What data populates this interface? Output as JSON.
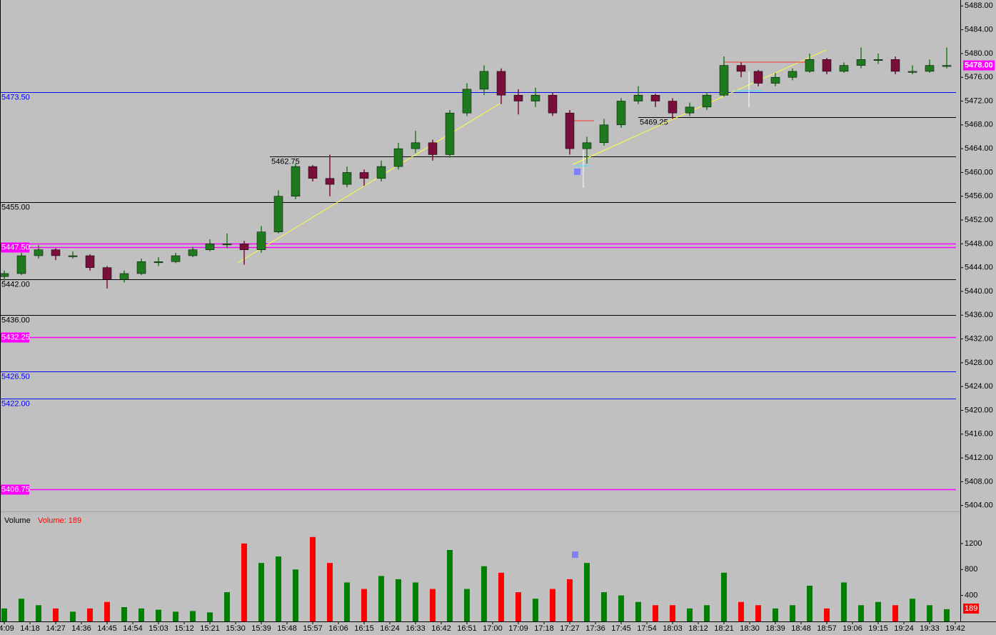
{
  "chart_data": [
    {
      "type": "candlestick",
      "x": [
        "14:09",
        "14:15",
        "14:21",
        "14:27",
        "14:33",
        "14:39",
        "14:45",
        "14:51",
        "14:57",
        "15:03",
        "15:09",
        "15:15",
        "15:21",
        "15:27",
        "15:33",
        "15:39",
        "15:45",
        "15:51",
        "15:57",
        "16:03",
        "16:09",
        "16:15",
        "16:21",
        "16:27",
        "16:33",
        "16:39",
        "16:45",
        "16:51",
        "16:57",
        "17:03",
        "17:09",
        "17:15",
        "17:21",
        "17:27",
        "17:33",
        "17:39",
        "17:45",
        "17:51",
        "17:57",
        "18:03",
        "18:09",
        "18:15",
        "18:21",
        "18:27",
        "18:33",
        "18:39",
        "18:45",
        "18:51",
        "18:57",
        "19:03",
        "19:09",
        "19:15",
        "19:21",
        "19:27",
        "19:33",
        "19:39"
      ],
      "open": [
        5442.5,
        5443,
        5446,
        5447,
        5446,
        5446,
        5444,
        5442,
        5443,
        5445,
        5445,
        5446,
        5447,
        5448,
        5448,
        5447,
        5450,
        5456,
        5461,
        5459,
        5458,
        5460,
        5459,
        5461,
        5464,
        5465,
        5463,
        5470,
        5474,
        5477,
        5473,
        5472,
        5473,
        5470,
        5464,
        5465,
        5468,
        5472,
        5473,
        5472,
        5470,
        5471,
        5473,
        5478,
        5477,
        5475,
        5476,
        5477,
        5479,
        5477,
        5478,
        5479,
        5479,
        5477,
        5477,
        5478
      ],
      "high": [
        5443.5,
        5446.5,
        5447.75,
        5447.25,
        5446.75,
        5446.25,
        5444.25,
        5443.5,
        5445.5,
        5445.75,
        5446.5,
        5447.5,
        5448.75,
        5449.75,
        5448.5,
        5451,
        5457,
        5461.5,
        5461.25,
        5463,
        5461,
        5460.5,
        5462,
        5465,
        5467,
        5465.5,
        5470.5,
        5475,
        5478,
        5477.5,
        5474,
        5474.25,
        5473.5,
        5470.5,
        5466,
        5469,
        5472.5,
        5474.5,
        5473.25,
        5472.5,
        5471.75,
        5473.5,
        5479.5,
        5478.5,
        5477.25,
        5476.75,
        5477.5,
        5480,
        5479.25,
        5478.5,
        5481,
        5480,
        5479.5,
        5478,
        5479,
        5481
      ],
      "low": [
        5441.75,
        5442.75,
        5445.5,
        5445.25,
        5445.5,
        5443.5,
        5440.5,
        5441.5,
        5442.75,
        5444.25,
        5444.75,
        5445.75,
        5446.75,
        5447.25,
        5444.5,
        5446.5,
        5449.75,
        5455.5,
        5458.5,
        5456,
        5457.5,
        5457.75,
        5458.5,
        5460.5,
        5463.25,
        5462,
        5462.5,
        5469.5,
        5473,
        5471.5,
        5469.75,
        5471,
        5469.5,
        5463,
        5461.5,
        5464.5,
        5467.5,
        5471.5,
        5471,
        5469,
        5469.5,
        5470.5,
        5472.75,
        5476,
        5474.5,
        5474.5,
        5475.5,
        5476.75,
        5476.5,
        5476.75,
        5477.5,
        5478.25,
        5476.5,
        5476.5,
        5476.75,
        5477.5
      ],
      "close": [
        5443,
        5446,
        5447,
        5446,
        5446,
        5444,
        5442,
        5443,
        5445,
        5445,
        5446,
        5447,
        5448,
        5448,
        5447,
        5450,
        5456,
        5461,
        5459,
        5458,
        5460,
        5459,
        5461,
        5464,
        5465,
        5463,
        5470,
        5474,
        5477,
        5473,
        5472,
        5473,
        5470,
        5464,
        5465,
        5468,
        5472,
        5473,
        5472,
        5470,
        5471,
        5473,
        5478,
        5477,
        5475,
        5476,
        5477,
        5479,
        5477,
        5478,
        5479,
        5479,
        5477,
        5477,
        5478,
        5478
      ],
      "up_color": "#1f7a1f",
      "down_color": "#7a0f3c",
      "ylim": [
        5403,
        5489
      ],
      "yticks": [
        {
          "value": 5404,
          "label": "5404.00"
        },
        {
          "value": 5408,
          "label": "5408.00"
        },
        {
          "value": 5412,
          "label": "5412.00"
        },
        {
          "value": 5416,
          "label": "5416.00"
        },
        {
          "value": 5420,
          "label": "5420.00"
        },
        {
          "value": 5424,
          "label": "5424.00"
        },
        {
          "value": 5428,
          "label": "5428.00"
        },
        {
          "value": 5432,
          "label": "5432.00"
        },
        {
          "value": 5436,
          "label": "5436.00"
        },
        {
          "value": 5440,
          "label": "5440.00"
        },
        {
          "value": 5444,
          "label": "5444.00"
        },
        {
          "value": 5448,
          "label": "5448.00"
        },
        {
          "value": 5452,
          "label": "5452.00"
        },
        {
          "value": 5456,
          "label": "5456.00"
        },
        {
          "value": 5460,
          "label": "5460.00"
        },
        {
          "value": 5464,
          "label": "5464.00"
        },
        {
          "value": 5468,
          "label": "5468.00"
        },
        {
          "value": 5472,
          "label": "5472.00"
        },
        {
          "value": 5476,
          "label": "5476.00"
        },
        {
          "value": 5480,
          "label": "5480.00"
        },
        {
          "value": 5484,
          "label": "5484.00"
        },
        {
          "value": 5488,
          "label": "5488.00"
        }
      ],
      "xticks": [
        "14:09",
        "14:18",
        "14:27",
        "14:36",
        "14:45",
        "14:54",
        "15:03",
        "15:12",
        "15:21",
        "15:30",
        "15:39",
        "15:48",
        "15:57",
        "16:06",
        "16:15",
        "16:24",
        "16:33",
        "16:42",
        "16:51",
        "17:00",
        "17:09",
        "17:18",
        "17:27",
        "17:36",
        "17:45",
        "17:54",
        "18:03",
        "18:12",
        "18:21",
        "18:30",
        "18:39",
        "18:48",
        "18:57",
        "19:06",
        "19:15",
        "19:24",
        "19:33",
        "19:42"
      ],
      "price_tag": {
        "value": 5478,
        "label": "5478.00",
        "color": "#ff00ff"
      },
      "levels": [
        {
          "value": 5473.5,
          "label": "5473.50",
          "color": "#0000ff",
          "style": "plain"
        },
        {
          "value": 5469.25,
          "label": "5469.25",
          "color": "#000000",
          "style": "plain",
          "from": "17:51"
        },
        {
          "value": 5462.75,
          "label": "5462.75",
          "color": "#000000",
          "style": "plain",
          "from": "15:42"
        },
        {
          "value": 5455,
          "label": "5455.00",
          "color": "#000000",
          "style": "plain"
        },
        {
          "value": 5448,
          "color": "#ff00ff",
          "style": "tag"
        },
        {
          "value": 5447.5,
          "label": "5447.50",
          "color": "#ff00ff",
          "style": "tag"
        },
        {
          "value": 5442,
          "label": "5442.00",
          "color": "#000000",
          "style": "plain"
        },
        {
          "value": 5436,
          "label": "5436.00",
          "color": "#000000",
          "style": "plain"
        },
        {
          "value": 5432.25,
          "label": "5432.25",
          "color": "#ff00ff",
          "style": "tag"
        },
        {
          "value": 5426.5,
          "label": "5426.50",
          "color": "#0000ff",
          "style": "plain"
        },
        {
          "value": 5422,
          "label": "5422.00",
          "color": "#0000ff",
          "style": "plain"
        },
        {
          "value": 5406.75,
          "label": "5406.75",
          "color": "#ff00ff",
          "style": "tag"
        }
      ]
    },
    {
      "type": "bar",
      "title": "Volume",
      "subtitle": "Volume: 189",
      "values": [
        200,
        350,
        250,
        200,
        150,
        200,
        300,
        220,
        200,
        180,
        150,
        160,
        140,
        450,
        1200,
        900,
        1000,
        800,
        1300,
        900,
        600,
        500,
        700,
        650,
        600,
        500,
        1100,
        500,
        850,
        750,
        450,
        350,
        500,
        650,
        900,
        450,
        400,
        300,
        250,
        250,
        200,
        250,
        750,
        300,
        250,
        200,
        250,
        550,
        200,
        600,
        250,
        300,
        250,
        350,
        250,
        189
      ],
      "up_color": "#008000",
      "down_color": "#ff0000",
      "ylim": [
        0,
        1650
      ],
      "yticks": [
        400,
        800,
        1200
      ]
    }
  ]
}
